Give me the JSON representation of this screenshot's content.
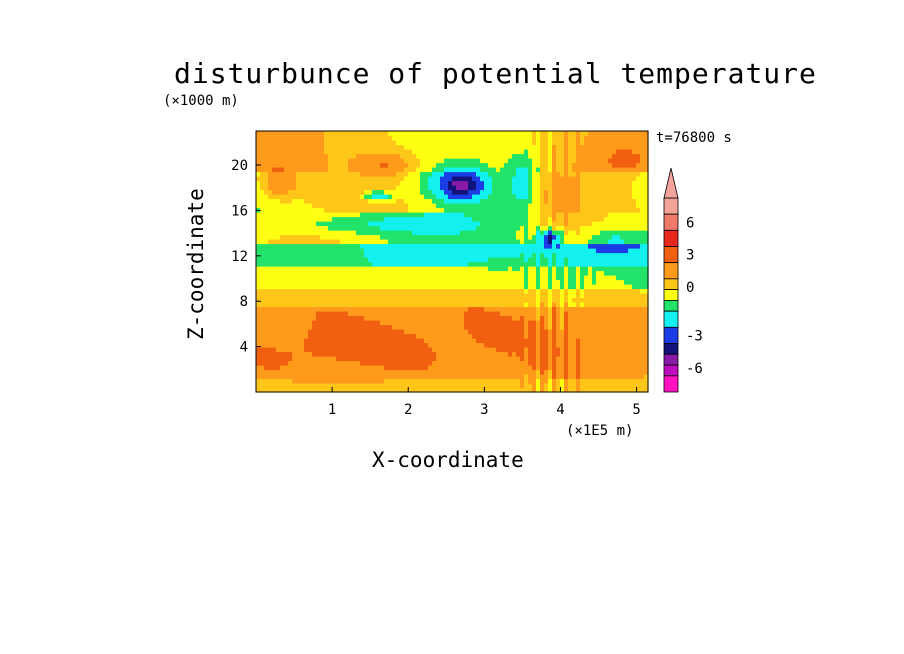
{
  "chart_data": {
    "type": "heatmap",
    "title": "disturbunce of potential temperature",
    "xlabel": "X-coordinate",
    "ylabel": "Z-coordinate",
    "x_unit": "(×1E5 m)",
    "y_unit": "(×1000 m)",
    "time_label": "t=76800 s",
    "xlim": [
      0,
      5.15
    ],
    "ylim": [
      0,
      23
    ],
    "x_ticks": [
      1,
      2,
      3,
      4,
      5
    ],
    "y_ticks": [
      4,
      8,
      12,
      16,
      20
    ],
    "colorbar": {
      "tick_labels": [
        6,
        3,
        0,
        -3,
        -6
      ],
      "levels": [
        {
          "lo": 7.5,
          "hi": 9.0,
          "color": "#f4a49a"
        },
        {
          "lo": 6.0,
          "hi": 7.5,
          "color": "#ef7a6a"
        },
        {
          "lo": 4.5,
          "hi": 6.0,
          "color": "#e8281e"
        },
        {
          "lo": 3.0,
          "hi": 4.5,
          "color": "#f06010"
        },
        {
          "lo": 1.5,
          "hi": 3.0,
          "color": "#ff9a1a"
        },
        {
          "lo": 0.5,
          "hi": 1.5,
          "color": "#ffc61a"
        },
        {
          "lo": -0.5,
          "hi": 0.5,
          "color": "#ffff14"
        },
        {
          "lo": -1.5,
          "hi": -0.5,
          "color": "#22e36a"
        },
        {
          "lo": -3.0,
          "hi": -1.5,
          "color": "#12f0f0"
        },
        {
          "lo": -4.5,
          "hi": -3.0,
          "color": "#1c3ce6"
        },
        {
          "lo": -5.5,
          "hi": -4.5,
          "color": "#12127a"
        },
        {
          "lo": -6.5,
          "hi": -5.5,
          "color": "#8a1aa8"
        },
        {
          "lo": -7.5,
          "hi": -6.5,
          "color": "#c00cc0"
        },
        {
          "lo": -9.0,
          "hi": -7.5,
          "color": "#ff10c0"
        }
      ]
    },
    "features": [
      {
        "x": 2.1,
        "z": 10.0,
        "amp": 0.6,
        "sx": 4.0,
        "sz": 5.5
      },
      {
        "x": 2.6,
        "z": 4.2,
        "amp": 1.4,
        "sx": 3.0,
        "sz": 3.0
      },
      {
        "x": 0.8,
        "z": 3.5,
        "amp": 0.9,
        "sx": 1.0,
        "sz": 2.5
      },
      {
        "x": 1.5,
        "z": 14.8,
        "amp": -1.5,
        "sx": 1.6,
        "sz": 0.9
      },
      {
        "x": 3.4,
        "z": 12.5,
        "amp": -1.0,
        "sx": 1.4,
        "sz": 1.2
      },
      {
        "x": 2.7,
        "z": 18.3,
        "amp": -5.5,
        "sx": 0.35,
        "sz": 1.4
      },
      {
        "x": 3.85,
        "z": 13.6,
        "amp": -5.0,
        "sx": 0.15,
        "sz": 0.7
      },
      {
        "x": 1.6,
        "z": 17.3,
        "amp": -3.5,
        "sx": 0.18,
        "sz": 0.4
      },
      {
        "x": 1.7,
        "z": 20.0,
        "amp": 2.5,
        "sx": 0.35,
        "sz": 1.2
      },
      {
        "x": 0.3,
        "z": 18.5,
        "amp": 2.5,
        "sx": 0.25,
        "sz": 1.4
      },
      {
        "x": 3.5,
        "z": 18.5,
        "amp": -2.5,
        "sx": 0.2,
        "sz": 2.5
      },
      {
        "x": 4.7,
        "z": 13.5,
        "amp": -2.0,
        "sx": 0.4,
        "sz": 1.0
      },
      {
        "x": 4.0,
        "z": 17.0,
        "amp": 1.5,
        "sx": 0.25,
        "sz": 2.5
      },
      {
        "x": 4.8,
        "z": 20.5,
        "amp": 1.5,
        "sx": 0.5,
        "sz": 2.0
      }
    ]
  }
}
